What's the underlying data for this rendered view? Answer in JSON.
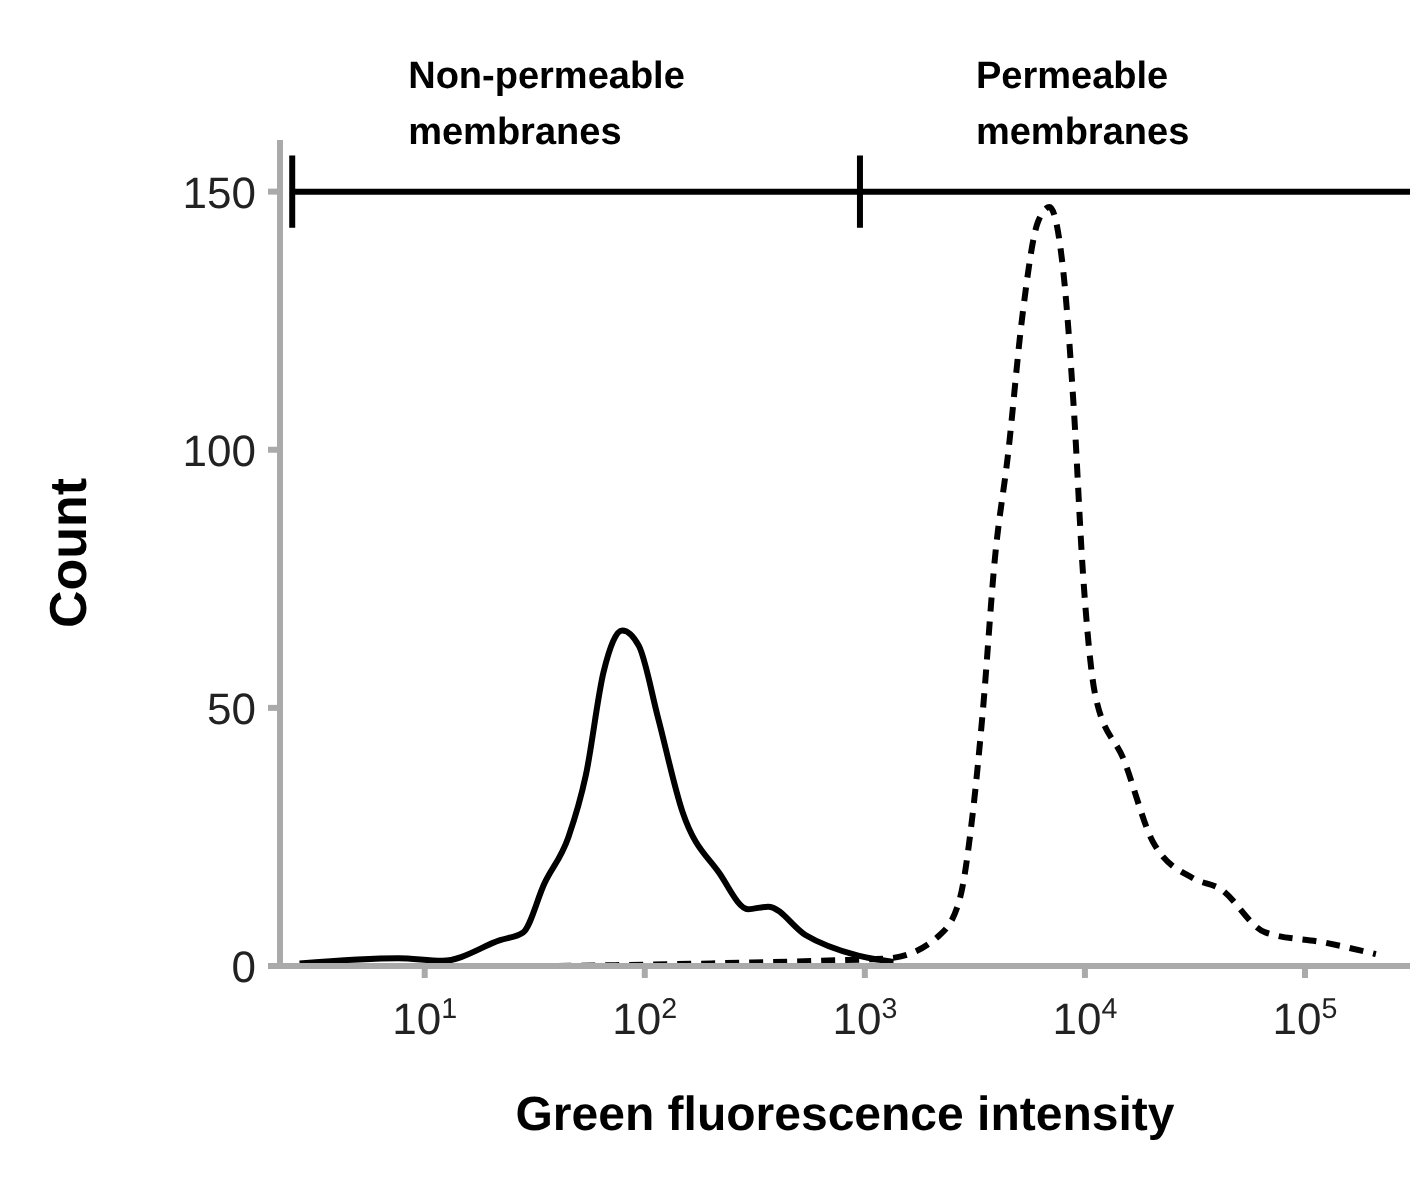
{
  "chart_data": {
    "type": "line",
    "xlabel": "Green fluorescence intensity",
    "ylabel": "Count",
    "log": "x",
    "xlim": [
      2.2,
      300000
    ],
    "xticks": [
      {
        "value": 10,
        "label": "10$^{1}$"
      },
      {
        "value": 100,
        "label": "10$^{2}$"
      },
      {
        "value": 1000,
        "label": "10$^{3}$"
      },
      {
        "value": 10000,
        "label": "10$^{4}$"
      },
      {
        "value": 100000,
        "label": "10$^{5}$"
      }
    ],
    "ylim": [
      0,
      160
    ],
    "yticks": [
      0,
      50,
      100,
      150
    ],
    "series": [
      {
        "color": "#000000",
        "line_style": "solid",
        "x": [
          2.7,
          7.6,
          12,
          22,
          28,
          35,
          45,
          54,
          65,
          79,
          94,
          115,
          148,
          218,
          295,
          363,
          537,
          933,
          1350
        ],
        "values": [
          0.5,
          1.5,
          1,
          5,
          6.5,
          16,
          25,
          37,
          57,
          65,
          62,
          48,
          30,
          18,
          11,
          11.5,
          6,
          2,
          0.8
        ]
      },
      {
        "color": "#000000",
        "line_style": "solid",
        "x": [
          2.5,
          950,
          300000
        ],
        "values": [
          150,
          150,
          150
        ],
        "errors": [
          7,
          7,
          null
        ]
      },
      {
        "color": "#000000",
        "line_style": "dashed",
        "x": [
          40,
          200,
          600,
          1290,
          2190,
          2700,
          3100,
          3430,
          3900,
          4470,
          5200,
          6100,
          6900,
          8000,
          8900,
          9800,
          11200,
          15000,
          20400,
          31000,
          41000,
          66000,
          124000,
          210000
        ],
        "values": [
          0,
          0.5,
          1,
          1.5,
          6,
          13,
          30,
          49,
          79,
          99,
          126,
          144,
          147,
          134,
          108,
          76,
          52,
          40,
          24,
          17,
          15,
          6.5,
          4.5,
          2.3
        ]
      }
    ],
    "annotations": [
      "Non-permeable membranes",
      "Permeable membranes"
    ]
  }
}
